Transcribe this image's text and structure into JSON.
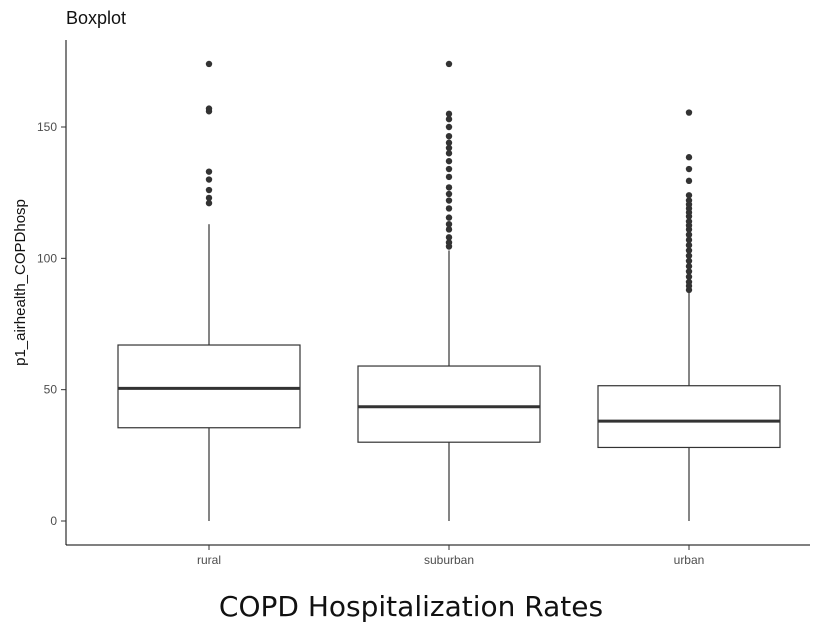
{
  "chart_data": {
    "type": "boxplot",
    "title": "Boxplot",
    "caption": "COPD Hospitalization Rates",
    "ylabel": "p1_airhealth_COPDhosp",
    "xlabel": "",
    "categories": [
      "rural",
      "suburban",
      "urban"
    ],
    "yticks": [
      0,
      50,
      100,
      150
    ],
    "ylim": [
      -8,
      182
    ],
    "grid": false,
    "boxes": [
      {
        "category": "rural",
        "whisker_low": 0,
        "q1": 35.5,
        "median": 50.5,
        "q3": 67,
        "whisker_high": 113,
        "outliers": [
          121,
          123,
          126,
          130,
          133,
          156,
          157,
          174
        ]
      },
      {
        "category": "suburban",
        "whisker_low": 0,
        "q1": 30,
        "median": 43.5,
        "q3": 59,
        "whisker_high": 103,
        "outliers": [
          104.5,
          106,
          108,
          111,
          113,
          115.5,
          119,
          122,
          124.5,
          127,
          131,
          134,
          137,
          140,
          142,
          144,
          146.5,
          150,
          153,
          155,
          174
        ]
      },
      {
        "category": "urban",
        "whisker_low": 0,
        "q1": 28,
        "median": 38,
        "q3": 51.5,
        "whisker_high": 87,
        "outliers": [
          88,
          89.5,
          91,
          93,
          95,
          97,
          99,
          101,
          103,
          105,
          107,
          109,
          111,
          112.5,
          114,
          116,
          117.5,
          119,
          120.5,
          122,
          124,
          129.5,
          134,
          138.5,
          155.5
        ]
      }
    ]
  }
}
